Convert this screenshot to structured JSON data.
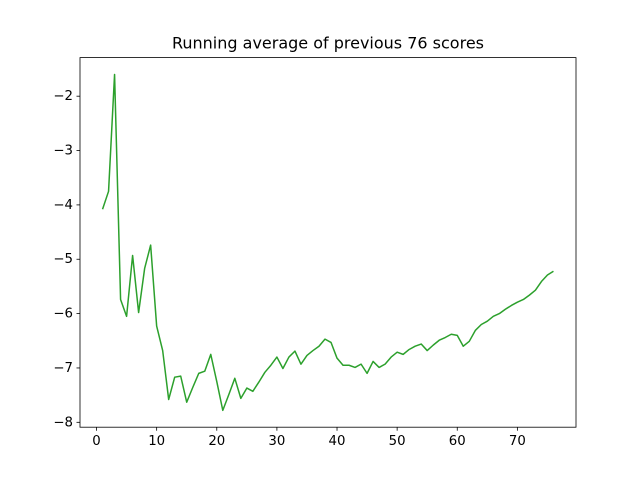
{
  "chart_data": {
    "type": "line",
    "title": "Running average of previous 76 scores",
    "x": [
      1,
      2,
      3,
      4,
      5,
      6,
      7,
      8,
      9,
      10,
      11,
      12,
      13,
      14,
      15,
      16,
      17,
      18,
      19,
      20,
      21,
      22,
      23,
      24,
      25,
      26,
      27,
      28,
      29,
      30,
      31,
      32,
      33,
      34,
      35,
      36,
      37,
      38,
      39,
      40,
      41,
      42,
      43,
      44,
      45,
      46,
      47,
      48,
      49,
      50,
      51,
      52,
      53,
      54,
      55,
      56,
      57,
      58,
      59,
      60,
      61,
      62,
      63,
      64,
      65,
      66,
      67,
      68,
      69,
      70,
      71,
      72,
      73,
      74,
      75,
      76
    ],
    "series": [
      {
        "color": "#2ca02c",
        "values": [
          -4.08,
          -3.75,
          -1.6,
          -5.74,
          -6.05,
          -4.93,
          -5.98,
          -5.17,
          -4.74,
          -6.23,
          -6.68,
          -7.58,
          -7.17,
          -7.15,
          -7.63,
          -7.36,
          -7.1,
          -7.06,
          -6.75,
          -7.25,
          -7.78,
          -7.49,
          -7.19,
          -7.56,
          -7.37,
          -7.43,
          -7.26,
          -7.08,
          -6.95,
          -6.8,
          -7.01,
          -6.8,
          -6.69,
          -6.93,
          -6.77,
          -6.68,
          -6.6,
          -6.47,
          -6.53,
          -6.82,
          -6.95,
          -6.95,
          -6.99,
          -6.93,
          -7.1,
          -6.88,
          -6.99,
          -6.93,
          -6.8,
          -6.71,
          -6.75,
          -6.66,
          -6.6,
          -6.56,
          -6.68,
          -6.58,
          -6.49,
          -6.44,
          -6.38,
          -6.4,
          -6.6,
          -6.51,
          -6.31,
          -6.2,
          -6.14,
          -6.05,
          -6.0,
          -5.92,
          -5.85,
          -5.79,
          -5.74,
          -5.66,
          -5.57,
          -5.41,
          -5.29,
          -5.22
        ]
      }
    ],
    "xlim": [
      -2.75,
      79.75
    ],
    "xticks": [
      0,
      10,
      20,
      30,
      40,
      50,
      60,
      70
    ],
    "ylim": [
      -8.09,
      -1.29
    ],
    "yticks": [
      {
        "value": -8,
        "label": "−8"
      },
      {
        "value": -7,
        "label": "−7"
      },
      {
        "value": -6,
        "label": "−6"
      },
      {
        "value": -5,
        "label": "−5"
      },
      {
        "value": -4,
        "label": "−4"
      },
      {
        "value": -3,
        "label": "−3"
      },
      {
        "value": -2,
        "label": "−2"
      }
    ]
  }
}
